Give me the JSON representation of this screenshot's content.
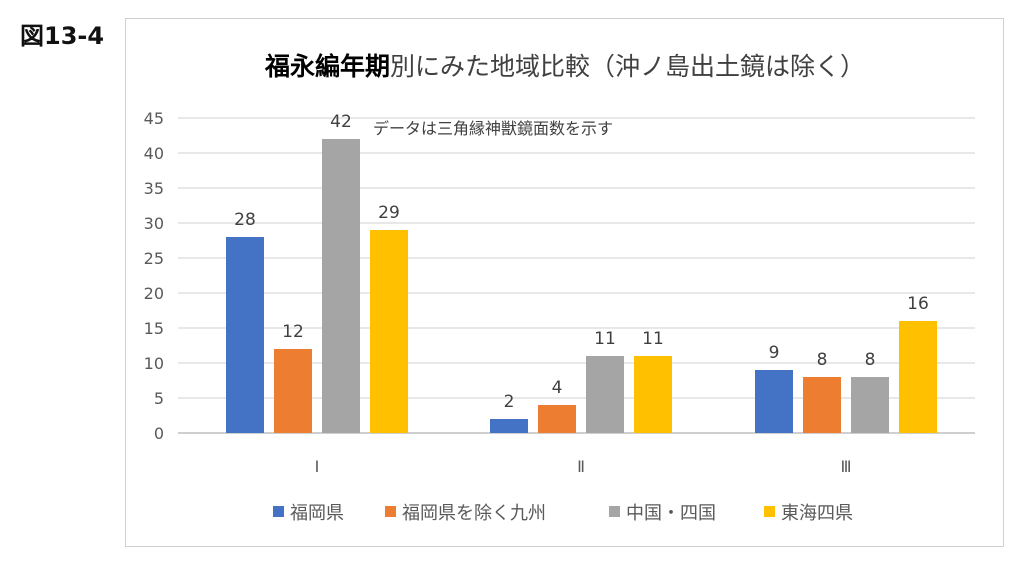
{
  "figure_label": "図13-4",
  "chart_data": {
    "type": "bar",
    "title_bold": "福永編年期",
    "title_rest": "別にみた地域比較（沖ノ島出土鏡は除く）",
    "annotation": "データは三角縁神獣鏡面数を示す",
    "categories": [
      "Ⅰ",
      "Ⅱ",
      "Ⅲ"
    ],
    "series": [
      {
        "name": "福岡県",
        "color": "#4472C4",
        "values": [
          28,
          2,
          9
        ]
      },
      {
        "name": "福岡県を除く九州",
        "color": "#ED7D31",
        "values": [
          12,
          4,
          8
        ]
      },
      {
        "name": "中国・四国",
        "color": "#A5A5A5",
        "values": [
          42,
          11,
          8
        ]
      },
      {
        "name": "東海四県",
        "color": "#FFC000",
        "values": [
          29,
          11,
          16
        ]
      }
    ],
    "ylim": [
      0,
      45
    ],
    "yticks": [
      0,
      5,
      10,
      15,
      20,
      25,
      30,
      35,
      40,
      45
    ],
    "grid": true,
    "data_labels": true,
    "legend_position": "bottom"
  }
}
